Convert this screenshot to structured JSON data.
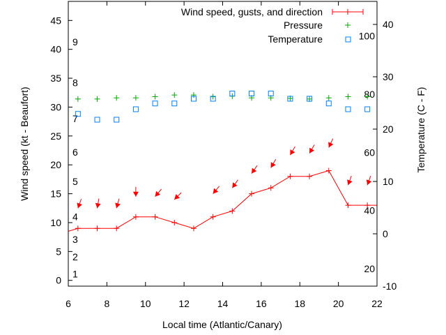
{
  "chart_data": {
    "type": "line",
    "title": "",
    "xlabel": "Local time (Atlantic/Canary)",
    "ylabel": "Wind speed (kt - Beaufort)",
    "y2label": "Temperature (C - F)",
    "xlim": [
      6,
      22
    ],
    "ylim": [
      -1,
      48.3
    ],
    "y2lim": [
      -10,
      44.4
    ],
    "xticks": [
      6,
      8,
      10,
      12,
      14,
      16,
      18,
      20,
      22
    ],
    "yticks": [
      0,
      5,
      10,
      15,
      20,
      25,
      30,
      35,
      40,
      45
    ],
    "y2ticks": [
      -10,
      0,
      10,
      20,
      30,
      40
    ],
    "grid": false,
    "legend_position": "top-right",
    "beaufort_labels": [
      {
        "label": "1",
        "kt": 1.1
      },
      {
        "label": "2",
        "kt": 4.1
      },
      {
        "label": "3",
        "kt": 7.1
      },
      {
        "label": "4",
        "kt": 11
      },
      {
        "label": "5",
        "kt": 17.1
      },
      {
        "label": "6",
        "kt": 22.2
      },
      {
        "label": "7",
        "kt": 28
      },
      {
        "label": "8",
        "kt": 34.2
      },
      {
        "label": "9",
        "kt": 41.3
      }
    ],
    "fahrenheit_labels": [
      {
        "label": "20",
        "f": 20
      },
      {
        "label": "40",
        "f": 40
      },
      {
        "label": "60",
        "f": 60
      },
      {
        "label": "80",
        "f": 80
      },
      {
        "label": "100",
        "f": 100
      }
    ],
    "x": [
      6.5,
      7.5,
      8.5,
      9.5,
      10.5,
      11.5,
      12.5,
      13.5,
      14.5,
      15.5,
      16.5,
      17.5,
      18.5,
      19.5,
      20.5,
      21.5
    ],
    "series": [
      {
        "name": "Wind speed, gusts, and direction",
        "color": "#ff0000",
        "axis": "y",
        "line_start": [
          6,
          8.5
        ],
        "line_end": [
          22,
          13
        ],
        "values": [
          9,
          9,
          9,
          11,
          11,
          10,
          9,
          11,
          12,
          15,
          16,
          18,
          18,
          19,
          13,
          13
        ],
        "gusts": [
          12.5,
          12.5,
          12.5,
          14.5,
          14.5,
          14,
          null,
          15,
          16,
          18.5,
          19.5,
          21.7,
          22,
          23,
          16.5,
          16.5
        ],
        "direction_deg": [
          20,
          10,
          15,
          0,
          40,
          45,
          null,
          40,
          35,
          35,
          30,
          30,
          30,
          25,
          20,
          20
        ]
      },
      {
        "name": "Pressure",
        "color": "#00aa00",
        "axis": "y",
        "values": [
          31.4,
          31.4,
          31.6,
          31.6,
          31.8,
          32.1,
          32.1,
          31.8,
          31.9,
          31.6,
          31.6,
          31.5,
          31.4,
          31.6,
          31.8,
          31.8
        ]
      },
      {
        "name": "Temperature",
        "color": "#0080ff",
        "axis": "y2",
        "values": [
          22.9,
          21.8,
          21.8,
          23.8,
          24.9,
          24.9,
          25.8,
          25.8,
          26.8,
          26.8,
          26.8,
          25.8,
          25.8,
          24.9,
          23.8,
          23.8
        ]
      }
    ]
  }
}
